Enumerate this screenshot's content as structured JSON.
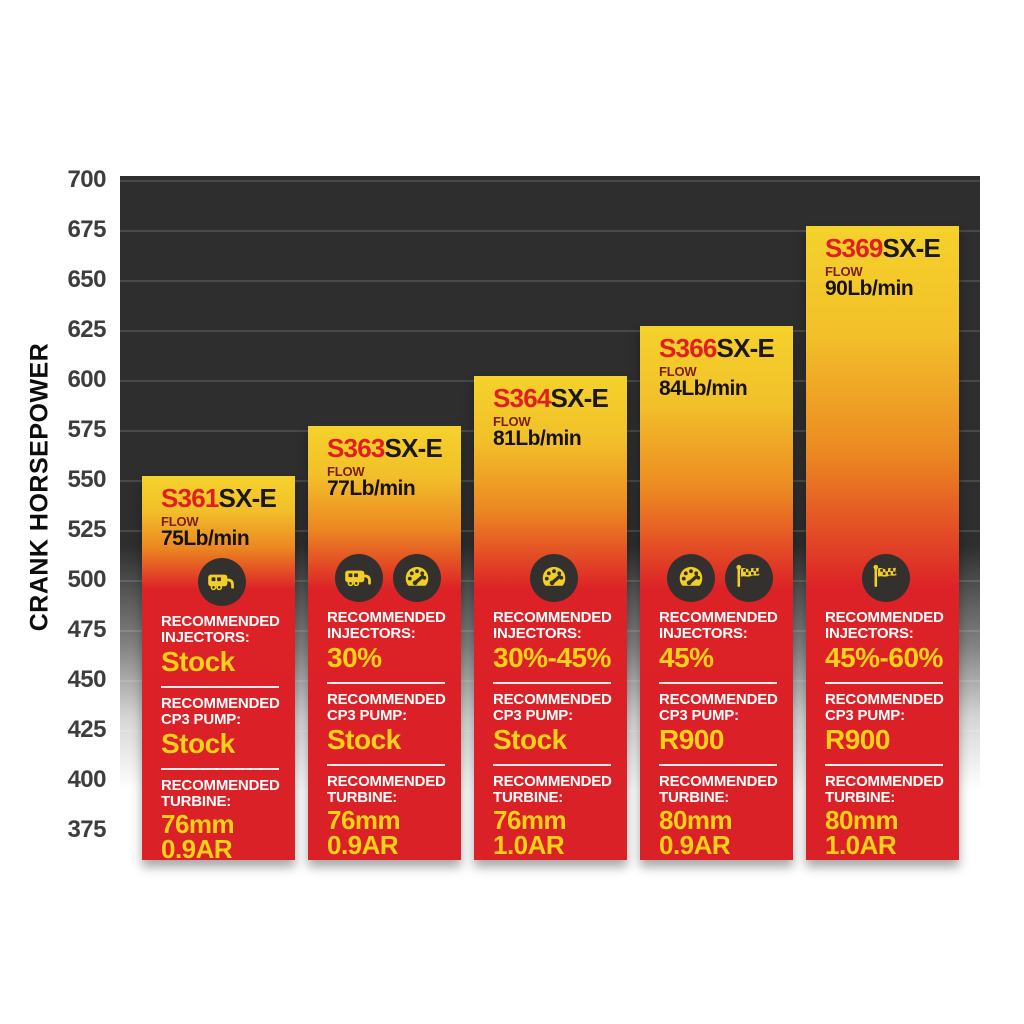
{
  "chart_data": {
    "type": "bar",
    "title": "",
    "xlabel": "",
    "ylabel": "CRANK HORSEPOWER",
    "yticks": [
      700,
      675,
      650,
      625,
      600,
      575,
      550,
      525,
      500,
      475,
      450,
      425,
      400,
      375
    ],
    "ylim": [
      360,
      702
    ],
    "grid": true,
    "legend_position": "none",
    "colors": {
      "plot_bg": "#2f2e2e",
      "gridline": "rgba(255,255,255,0.13)",
      "bar_yellow_top": "#f5d22b",
      "bar_orange_mid": "#ec8922",
      "bar_red_bottom": "#dc2127",
      "value_yellow": "#fcd116",
      "model_red": "#e11f22",
      "flow_maroon": "#7c1e12",
      "tick_gray": "#3d3d3d",
      "icon_circle": "#33302e",
      "icon_yellow": "#f2cf26"
    },
    "row_labels": {
      "flow": "FLOW",
      "injectors": [
        "RECOMMENDED",
        "INJECTORS:"
      ],
      "cp3": [
        "RECOMMENDED",
        "CP3 PUMP:"
      ],
      "turbine": [
        "RECOMMENDED",
        "TURBINE:"
      ]
    },
    "categories": [
      "S361SX-E",
      "S363SX-E",
      "S364SX-E",
      "S366SX-E",
      "S369SX-E"
    ],
    "values": [
      550,
      575,
      600,
      625,
      675
    ],
    "bars": [
      {
        "model_prefix": "S361",
        "model_suffix": "SX-E",
        "flow": "75Lb/min",
        "hp": 550,
        "icons": [
          "trailer"
        ],
        "injectors": "Stock",
        "cp3": "Stock",
        "turbine": [
          "76mm",
          "0.9AR"
        ]
      },
      {
        "model_prefix": "S363",
        "model_suffix": "SX-E",
        "flow": "77Lb/min",
        "hp": 575,
        "icons": [
          "trailer",
          "gauge"
        ],
        "injectors": "30%",
        "cp3": "Stock",
        "turbine": [
          "76mm",
          "0.9AR"
        ]
      },
      {
        "model_prefix": "S364",
        "model_suffix": "SX-E",
        "flow": "81Lb/min",
        "hp": 600,
        "icons": [
          "gauge"
        ],
        "injectors": "30%-45%",
        "cp3": "Stock",
        "turbine": [
          "76mm",
          "1.0AR"
        ]
      },
      {
        "model_prefix": "S366",
        "model_suffix": "SX-E",
        "flow": "84Lb/min",
        "hp": 625,
        "icons": [
          "gauge",
          "flag"
        ],
        "injectors": "45%",
        "cp3": "R900",
        "turbine": [
          "80mm",
          "0.9AR"
        ]
      },
      {
        "model_prefix": "S369",
        "model_suffix": "SX-E",
        "flow": "90Lb/min",
        "hp": 675,
        "icons": [
          "flag"
        ],
        "injectors": "45%-60%",
        "cp3": "R900",
        "turbine": [
          "80mm",
          "1.0AR"
        ]
      }
    ]
  }
}
